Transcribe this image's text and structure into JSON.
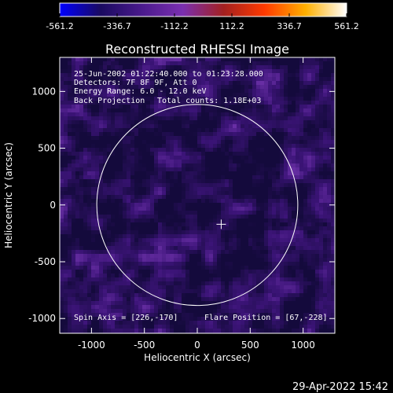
{
  "colorbar": {
    "ticks": [
      "-561.2",
      "-336.7",
      "-112.2",
      "112.2",
      "336.7",
      "561.2"
    ],
    "range": [
      -561.2,
      561.2
    ],
    "colors": [
      "#0000ff",
      "#1a0a60",
      "#4a1a8c",
      "#7a2fb0",
      "#a32020",
      "#ff3a00",
      "#ffb000",
      "#ffffff"
    ]
  },
  "chart_data": {
    "type": "heatmap",
    "title": "Reconstructed RHESSI Image",
    "xlabel": "Heliocentric X (arcsec)",
    "ylabel": "Heliocentric Y (arcsec)",
    "xlim": [
      -1300,
      1300
    ],
    "ylim": [
      -1130,
      1300
    ],
    "x_ticks": [
      -1000,
      -500,
      0,
      500,
      1000
    ],
    "x_tick_labels": [
      "-1000",
      "-500",
      "0",
      "500",
      "1000"
    ],
    "y_ticks": [
      1000,
      500,
      0,
      -500,
      -1000
    ],
    "y_tick_labels": [
      "1000",
      "500",
      "0",
      "-500",
      "-1000"
    ],
    "solar_limb_radius": 950,
    "flare_marker": [
      226,
      -170
    ],
    "annotations": {
      "line1": "25-Jun-2002 01:22:40.000 to 01:23:28.000",
      "line2": "Detectors: 7F 8F 9F, Att 0",
      "line3": "Energy Range: 6.0 - 12.0 keV",
      "line4a": "Back Projection",
      "line4b": "Total counts: 1.18E+03",
      "spin_axis": "Spin Axis = [226,-170]",
      "flare_position": "Flare Position = [67,-228]"
    }
  },
  "footer": {
    "timestamp": "29-Apr-2022 15:42"
  }
}
